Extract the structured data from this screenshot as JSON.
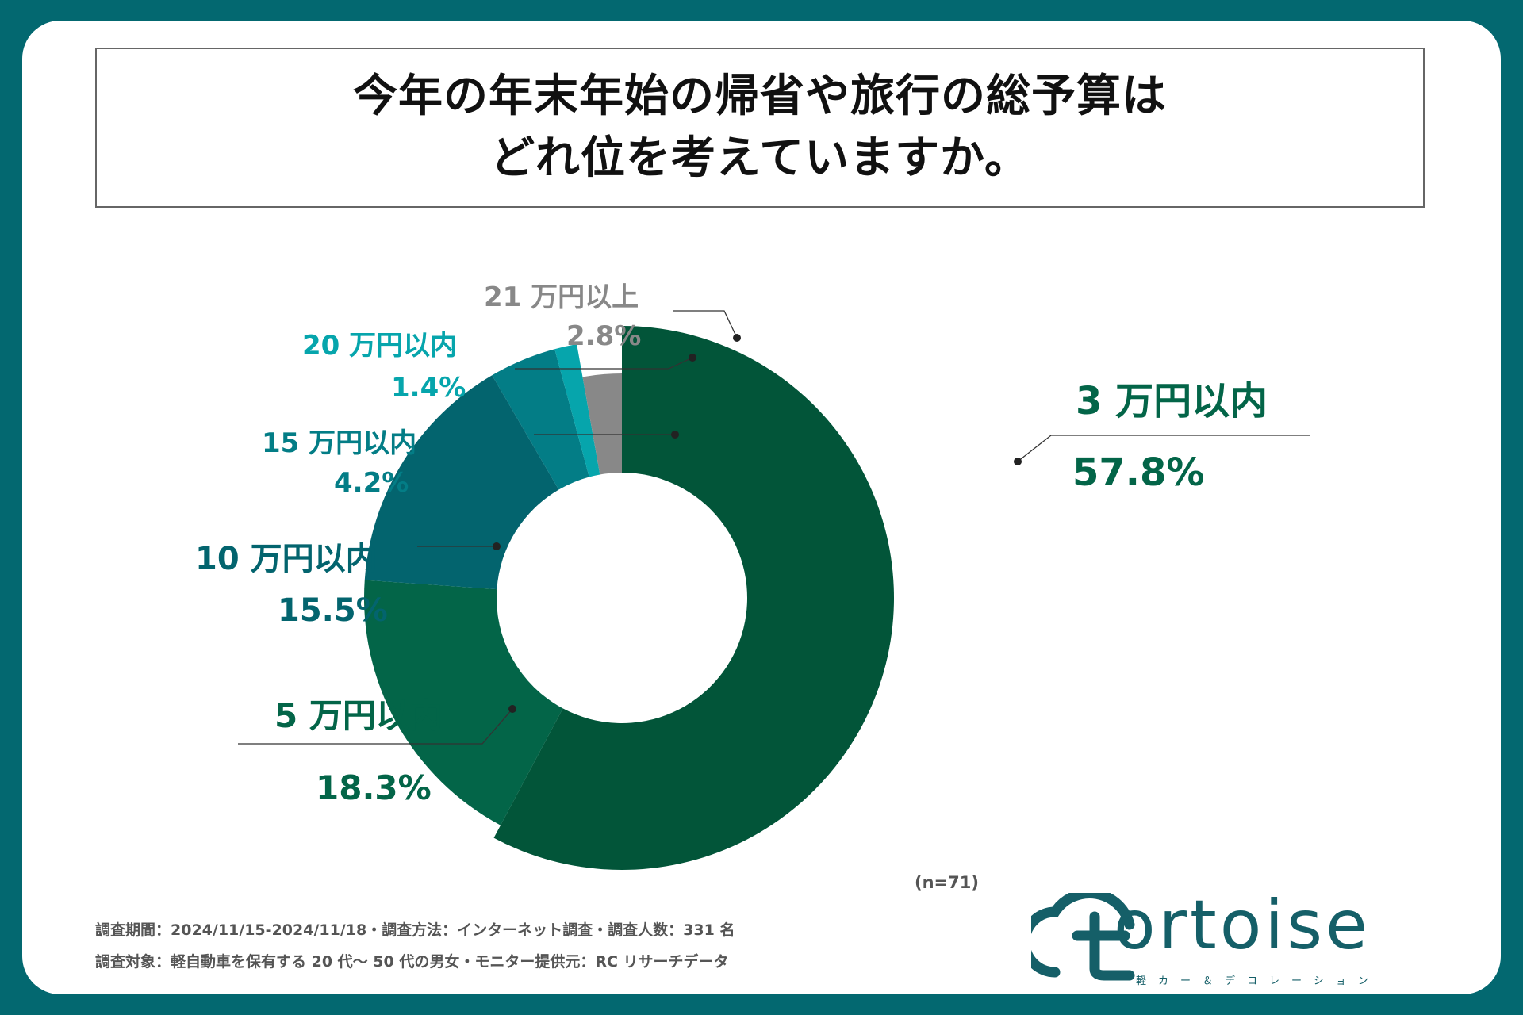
{
  "title": {
    "line1": "今年の年末年始の帰省や旅行の総予算は",
    "line2": "どれ位を考えていますか。"
  },
  "chart_data": {
    "type": "pie",
    "donut": true,
    "slices": [
      {
        "label": "3 万円以内",
        "value": 57.8,
        "value_label": "57.8%",
        "color": "#025539"
      },
      {
        "label": "5 万円以内",
        "value": 18.3,
        "value_label": "18.3%",
        "color": "#036548"
      },
      {
        "label": "10 万円以内",
        "value": 15.5,
        "value_label": "15.5%",
        "color": "#03646e"
      },
      {
        "label": "15 万円以内",
        "value": 4.2,
        "value_label": "4.2%",
        "color": "#037d86"
      },
      {
        "label": "20 万円以内",
        "value": 1.4,
        "value_label": "1.4%",
        "color": "#06a5ac"
      },
      {
        "label": "21 万円以上",
        "value": 2.8,
        "value_label": "2.8%",
        "color": "#888888"
      }
    ],
    "sample_size": "(n=71)"
  },
  "footnotes": {
    "line1": "調査期間：2024/11/15-2024/11/18・調査方法：インターネット調査・調査人数：331 名",
    "line2": "調査対象：軽自動車を保有する 20 代〜 50 代の男女・モニター提供元：RC リサーチデータ"
  },
  "logo": {
    "word": "ortoise",
    "subtitle": "軽カー＆デコレーション"
  },
  "colors": {
    "background": "#036870",
    "label_green": "#036548",
    "label_teal": "#03646e",
    "label_cyan": "#06a5ac",
    "label_gray": "#888888"
  }
}
